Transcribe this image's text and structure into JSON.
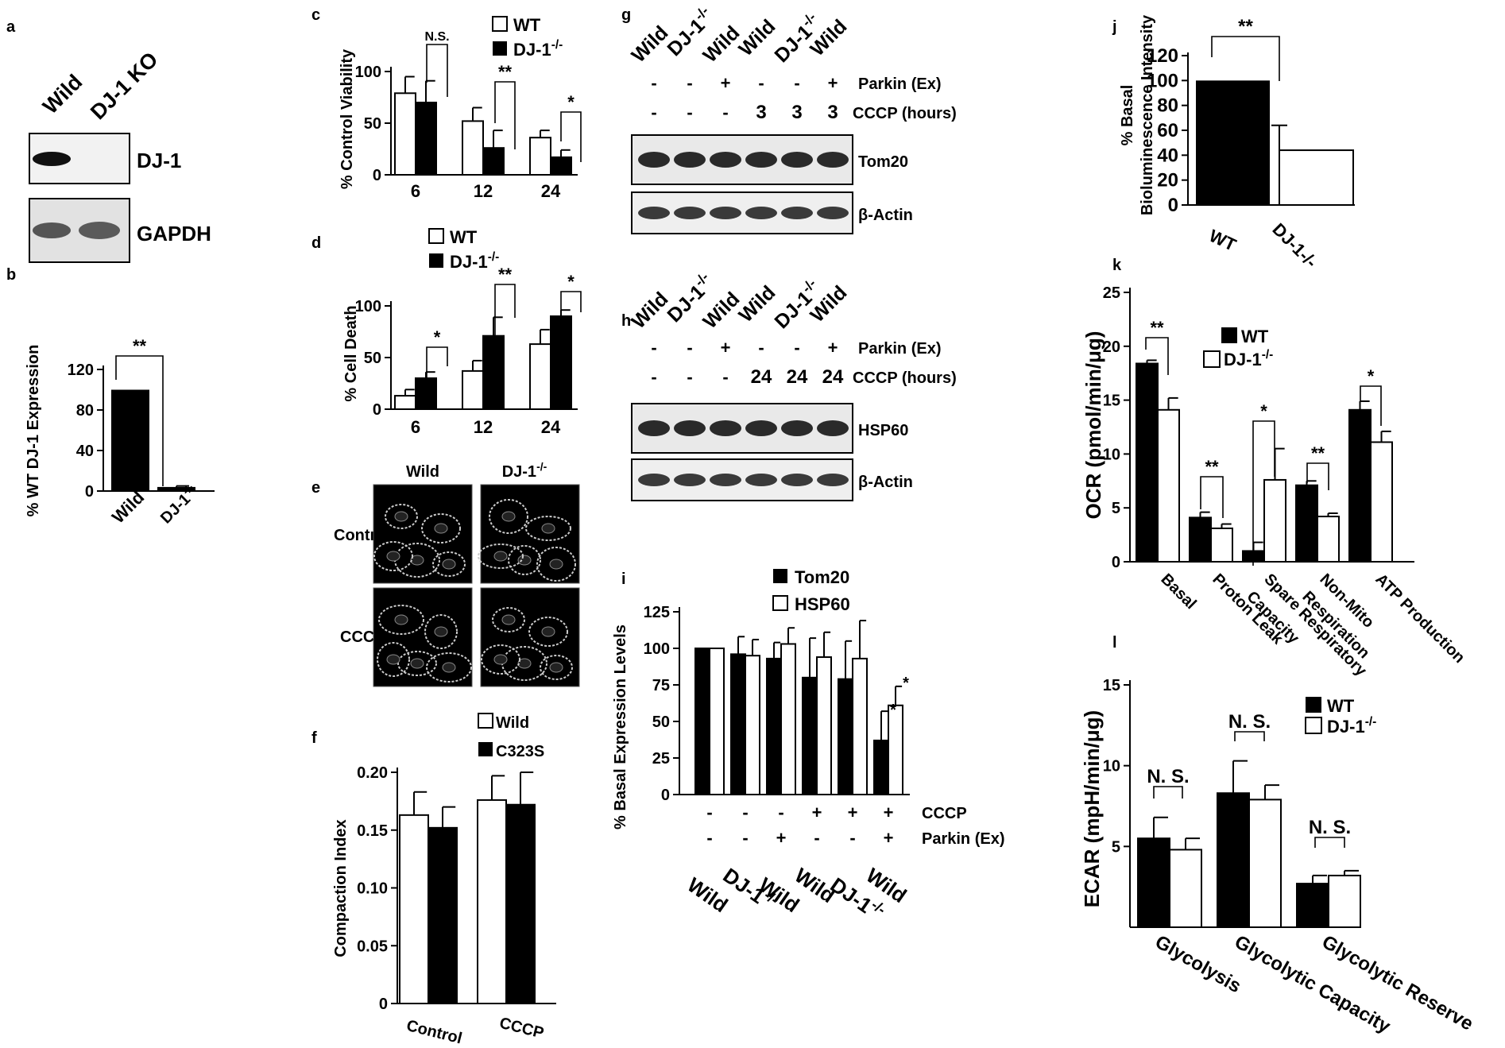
{
  "panel_letters": {
    "a": "a",
    "b": "b",
    "c": "c",
    "d": "d",
    "e": "e",
    "f": "f",
    "g": "g",
    "h": "h",
    "i": "i",
    "j": "j",
    "k": "k",
    "l": "l"
  },
  "blots": {
    "a": {
      "lanes": [
        "Wild",
        "DJ-1 KO"
      ],
      "rows": [
        "DJ-1",
        "GAPDH"
      ]
    },
    "g": {
      "lanes": [
        "Wild",
        "DJ-1",
        "Wild",
        "Wild",
        "DJ-1",
        "Wild"
      ],
      "sup": "-/-",
      "row1_label": "Parkin (Ex)",
      "row1": [
        "-",
        "-",
        "+",
        "-",
        "-",
        "+"
      ],
      "row2_label": "CCCP (hours)",
      "row2": [
        "-",
        "-",
        "-",
        "3",
        "3",
        "3"
      ],
      "bands": [
        "Tom20",
        "β-Actin"
      ]
    },
    "h": {
      "lanes": [
        "Wild",
        "DJ-1",
        "Wild",
        "Wild",
        "DJ-1",
        "Wild"
      ],
      "sup": "-/-",
      "row1_label": "Parkin (Ex)",
      "row1": [
        "-",
        "-",
        "+",
        "-",
        "-",
        "+"
      ],
      "row2_label": "CCCP (hours)",
      "row2": [
        "-",
        "-",
        "-",
        "24",
        "24",
        "24"
      ],
      "bands": [
        "HSP60",
        "β-Actin"
      ]
    }
  },
  "micro": {
    "cols": [
      "Wild",
      "DJ-1"
    ],
    "sup": "-/-",
    "rows": [
      "Control",
      "CCCP"
    ]
  },
  "chart_data": [
    {
      "panel": "b",
      "type": "bar",
      "ylabel": "% WT DJ-1 Expression",
      "ylim": [
        0,
        120
      ],
      "yticks": [
        0,
        40,
        80,
        120
      ],
      "categories": [
        "Wild",
        "DJ-1"
      ],
      "cat_sup": [
        "",
        "-/-"
      ],
      "values": [
        100,
        4
      ],
      "errors": [
        0,
        1
      ],
      "fills": [
        "black",
        "black"
      ],
      "sig": [
        {
          "label": "**"
        }
      ]
    },
    {
      "panel": "c",
      "type": "bar",
      "ylabel": "% Control Viability",
      "ylim": [
        0,
        100
      ],
      "yticks": [
        0,
        50,
        100
      ],
      "categories": [
        "6",
        "12",
        "24"
      ],
      "legend": [
        {
          "name": "WT",
          "fill": "white"
        },
        {
          "name": "DJ-1",
          "sup": "-/-",
          "fill": "black"
        }
      ],
      "series": [
        {
          "name": "WT",
          "values": [
            79,
            52,
            36
          ],
          "errors": [
            16,
            13,
            7
          ]
        },
        {
          "name": "DJ-1",
          "values": [
            70,
            26,
            17
          ],
          "errors": [
            21,
            17,
            7
          ]
        }
      ],
      "sig": [
        "N.S.",
        "**",
        "*"
      ]
    },
    {
      "panel": "d",
      "type": "bar",
      "ylabel": "% Cell Death",
      "ylim": [
        0,
        100
      ],
      "yticks": [
        0,
        50,
        100
      ],
      "categories": [
        "6",
        "12",
        "24"
      ],
      "legend": [
        {
          "name": "WT",
          "fill": "white"
        },
        {
          "name": "DJ-1",
          "sup": "-/-",
          "fill": "black"
        }
      ],
      "series": [
        {
          "name": "WT",
          "values": [
            13,
            37,
            63
          ],
          "errors": [
            6,
            10,
            14
          ]
        },
        {
          "name": "DJ-1",
          "values": [
            30,
            71,
            90
          ],
          "errors": [
            6,
            18,
            6
          ]
        }
      ],
      "sig": [
        "*",
        "**",
        "*"
      ]
    },
    {
      "panel": "f",
      "type": "bar",
      "ylabel": "Compaction Index",
      "ylim": [
        0,
        0.2
      ],
      "yticks": [
        "0",
        "0.05",
        "0.10",
        "0.15",
        "0.20"
      ],
      "categories": [
        "Control",
        "CCCP"
      ],
      "legend": [
        {
          "name": "Wild",
          "fill": "white"
        },
        {
          "name": "C323S",
          "fill": "black"
        }
      ],
      "series": [
        {
          "name": "Wild",
          "values": [
            0.163,
            0.176
          ],
          "errors": [
            0.02,
            0.021
          ]
        },
        {
          "name": "C323S",
          "values": [
            0.152,
            0.172
          ],
          "errors": [
            0.018,
            0.028
          ]
        }
      ]
    },
    {
      "panel": "i",
      "type": "bar",
      "ylabel": "% Basal Expression Levels",
      "ylim": [
        0,
        125
      ],
      "yticks": [
        0,
        25,
        50,
        75,
        100,
        125
      ],
      "categories": [
        "Wild",
        "DJ-1",
        "Wild",
        "Wild",
        "DJ-1",
        "Wild"
      ],
      "cat_sup": [
        "",
        "-/-",
        "",
        "",
        "-/-",
        ""
      ],
      "legend": [
        {
          "name": "Tom20",
          "fill": "black"
        },
        {
          "name": "HSP60",
          "fill": "white"
        }
      ],
      "series": [
        {
          "name": "Tom20",
          "values": [
            100,
            96,
            93,
            80,
            79,
            37
          ],
          "errors": [
            0,
            12,
            11,
            27,
            26,
            20
          ]
        },
        {
          "name": "HSP60",
          "values": [
            100,
            95,
            103,
            94,
            93,
            61
          ],
          "errors": [
            0,
            11,
            11,
            17,
            26,
            13
          ]
        }
      ],
      "row1_label": "CCCP",
      "row1": [
        "-",
        "-",
        "-",
        "+",
        "+",
        "+"
      ],
      "row2_label": "Parkin (Ex)",
      "row2": [
        "-",
        "-",
        "+",
        "-",
        "-",
        "+"
      ],
      "sig_last": [
        "*",
        "*"
      ]
    },
    {
      "panel": "j",
      "type": "bar",
      "ylabel": "% Basal",
      "ylabel2": "Bioluminescence Intensity",
      "ylim": [
        0,
        120
      ],
      "yticks": [
        0,
        20,
        40,
        60,
        80,
        100,
        120
      ],
      "categories": [
        "WT",
        "DJ-1-/-"
      ],
      "values": [
        100,
        44
      ],
      "errors": [
        0,
        20
      ],
      "fills": [
        "black",
        "white"
      ],
      "sig": [
        {
          "label": "**"
        }
      ]
    },
    {
      "panel": "k",
      "type": "bar",
      "ylabel": "OCR  (pmol/min/μg)",
      "ylim": [
        0,
        25
      ],
      "yticks": [
        0,
        5,
        10,
        15,
        20,
        25
      ],
      "categories": [
        "Basal",
        "Proton Leak",
        "Spare Respiratory Capacity",
        "Non-Mito Respiration",
        "ATP Production"
      ],
      "legend": [
        {
          "name": "WT",
          "fill": "black"
        },
        {
          "name": "DJ-1",
          "sup": "-/-",
          "fill": "white"
        }
      ],
      "series": [
        {
          "name": "WT",
          "values": [
            18.4,
            4.1,
            1.0,
            7.1,
            14.1
          ],
          "errors": [
            0.3,
            0.5,
            0.8,
            0.4,
            0.8
          ]
        },
        {
          "name": "DJ-1",
          "values": [
            14.1,
            3.1,
            7.6,
            4.2,
            11.1
          ],
          "errors": [
            1.1,
            0.4,
            2.9,
            0.3,
            1.0
          ]
        }
      ],
      "sig": [
        "**",
        "**",
        "*",
        "**",
        "*"
      ]
    },
    {
      "panel": "l",
      "type": "bar",
      "ylabel": "ECAR  (mpH/min/μg)",
      "ylim": [
        0,
        15
      ],
      "yticks": [
        5,
        10,
        15
      ],
      "categories": [
        "Glycolysis",
        "Glycolytic Capacity",
        "Glycolytic Reserve"
      ],
      "legend": [
        {
          "name": "WT",
          "fill": "black"
        },
        {
          "name": "DJ-1",
          "sup": "-/-",
          "fill": "white"
        }
      ],
      "series": [
        {
          "name": "WT",
          "values": [
            5.5,
            8.3,
            2.7
          ],
          "errors": [
            1.3,
            2.0,
            0.5
          ]
        },
        {
          "name": "DJ-1",
          "values": [
            4.8,
            7.9,
            3.2
          ],
          "errors": [
            0.7,
            0.9,
            0.3
          ]
        }
      ],
      "sig": [
        "N. S.",
        "N. S.",
        "N. S."
      ]
    }
  ]
}
